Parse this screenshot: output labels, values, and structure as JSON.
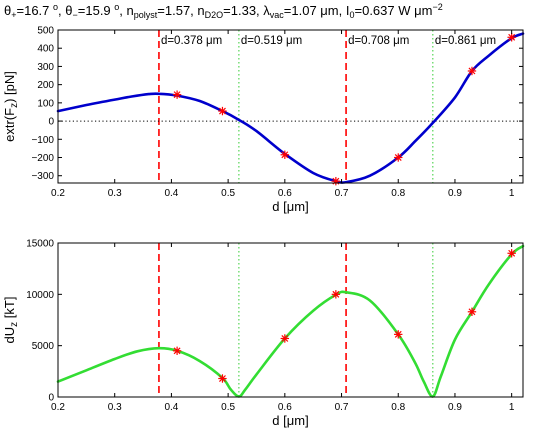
{
  "figure": {
    "title": {
      "theta_plus": "θ+=16.7 o",
      "theta_minus": "θ−=15.9 o",
      "n_polyst": "npolyst=1.57",
      "n_d2o": "nD2O=1.33",
      "lambda_vac": "λvac=1.07 μm",
      "intensity": "I0=0.637 W μm−2"
    }
  },
  "chart_data": [
    {
      "type": "line",
      "xlabel": "d [μm]",
      "ylabel": "extr(Fz) [pN]",
      "xlim": [
        0.2,
        1.02
      ],
      "ylim": [
        -340,
        500
      ],
      "xticks": [
        0.2,
        0.3,
        0.4,
        0.5,
        0.6,
        0.7,
        0.8,
        0.9,
        1
      ],
      "xtick_labels": [
        "0.2",
        "0.3",
        "0.4",
        "0.5",
        "0.6",
        "0.7",
        "0.8",
        "0.9",
        "1"
      ],
      "yticks": [
        -300,
        -200,
        -100,
        0,
        100,
        200,
        300,
        400,
        500
      ],
      "ytick_labels": [
        "−300",
        "−200",
        "−100",
        "0",
        "100",
        "200",
        "300",
        "400",
        "500"
      ],
      "grid": false,
      "series": [
        {
          "kind": "curve",
          "color": "#0000cc",
          "x": [
            0.2,
            0.25,
            0.3,
            0.33,
            0.36,
            0.378,
            0.41,
            0.45,
            0.49,
            0.52,
            0.55,
            0.6,
            0.65,
            0.69,
            0.708,
            0.75,
            0.8,
            0.83,
            0.861,
            0.9,
            0.93,
            0.96,
            1.0,
            1.02
          ],
          "y": [
            55,
            88,
            118,
            135,
            148,
            150,
            140,
            110,
            55,
            5,
            -55,
            -180,
            -285,
            -330,
            -335,
            -300,
            -200,
            -110,
            -10,
            130,
            275,
            360,
            455,
            480
          ]
        },
        {
          "kind": "markers",
          "color": "#ff0000",
          "x": [
            0.41,
            0.49,
            0.6,
            0.69,
            0.8,
            0.93,
            1.0
          ],
          "y": [
            145,
            55,
            -185,
            -330,
            -200,
            275,
            460
          ]
        }
      ],
      "zero_line": true,
      "vlines": [
        {
          "x": 0.378,
          "style": "dashed",
          "color": "#ff0000",
          "label": "d=0.378 μm"
        },
        {
          "x": 0.519,
          "style": "dotted",
          "color": "#33cc33",
          "label": "d=0.519 μm"
        },
        {
          "x": 0.708,
          "style": "dashed",
          "color": "#ff0000",
          "label": "d=0.708 μm"
        },
        {
          "x": 0.861,
          "style": "dotted",
          "color": "#33cc33",
          "label": "d=0.861 μm"
        }
      ]
    },
    {
      "type": "line",
      "xlabel": "d [μm]",
      "ylabel": "dUz [kT]",
      "xlim": [
        0.2,
        1.02
      ],
      "ylim": [
        0,
        15000
      ],
      "xticks": [
        0.2,
        0.3,
        0.4,
        0.5,
        0.6,
        0.7,
        0.8,
        0.9,
        1
      ],
      "xtick_labels": [
        "0.2",
        "0.3",
        "0.4",
        "0.5",
        "0.6",
        "0.7",
        "0.8",
        "0.9",
        "1"
      ],
      "yticks": [
        0,
        5000,
        10000,
        15000
      ],
      "ytick_labels": [
        "0",
        "5000",
        "10000",
        "15000"
      ],
      "grid": false,
      "series": [
        {
          "kind": "curve",
          "color": "#33dd33",
          "x": [
            0.2,
            0.25,
            0.3,
            0.34,
            0.378,
            0.41,
            0.45,
            0.49,
            0.505,
            0.519,
            0.53,
            0.55,
            0.6,
            0.65,
            0.69,
            0.708,
            0.75,
            0.8,
            0.83,
            0.845,
            0.861,
            0.875,
            0.9,
            0.93,
            0.96,
            1.0,
            1.02
          ],
          "y": [
            1500,
            2600,
            3700,
            4450,
            4750,
            4500,
            3500,
            1850,
            700,
            50,
            700,
            2200,
            5700,
            8400,
            9950,
            10200,
            9400,
            6100,
            3300,
            1500,
            50,
            2000,
            5600,
            8300,
            11000,
            13900,
            14700
          ]
        },
        {
          "kind": "markers",
          "color": "#ff0000",
          "x": [
            0.41,
            0.49,
            0.6,
            0.69,
            0.8,
            0.93,
            1.0
          ],
          "y": [
            4500,
            1800,
            5700,
            10000,
            6100,
            8300,
            14000
          ]
        }
      ],
      "zero_line": false,
      "vlines": [
        {
          "x": 0.378,
          "style": "dashed",
          "color": "#ff0000"
        },
        {
          "x": 0.519,
          "style": "dotted",
          "color": "#33cc33"
        },
        {
          "x": 0.708,
          "style": "dashed",
          "color": "#ff0000"
        },
        {
          "x": 0.861,
          "style": "dotted",
          "color": "#33cc33"
        }
      ]
    }
  ]
}
